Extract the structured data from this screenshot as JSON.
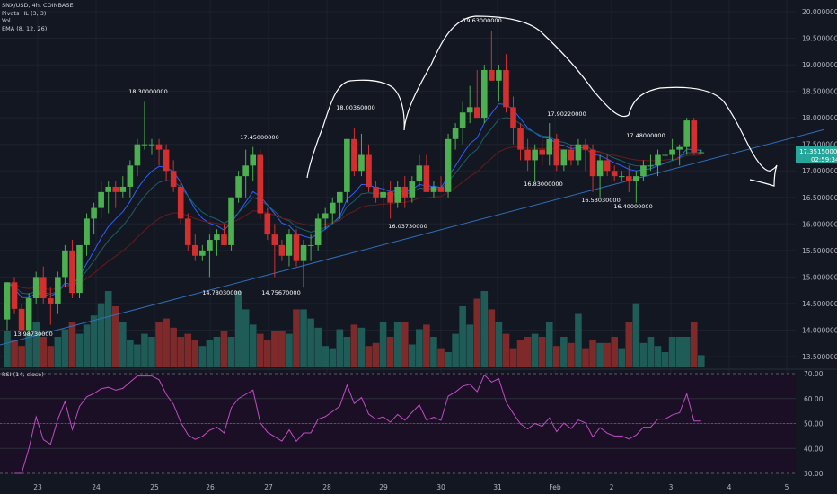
{
  "legend": {
    "symbol": "SNX/USD, 4h, COINBASE",
    "pivots": "Pivots HL (3, 3)",
    "vol": "Vol",
    "ema": "EMA (8, 12, 26)"
  },
  "rsi_label": "RSI (14, close)",
  "price_tag": {
    "value": "17.35150000",
    "countdown": "02:59:34"
  },
  "colors": {
    "background": "#131722",
    "up": "#26a69a",
    "up_body": "#4caf50",
    "down": "#d32f2f",
    "vol_up": "#1f5c57",
    "vol_down": "#7f2a2a",
    "trendline": "#2e6fb8",
    "ema_fast": "#2962ff",
    "ema_mid": "#1a5f6b",
    "ema_slow": "#6b1a1a",
    "rsi": "#c14cc5",
    "rsi_bg": "#1a0f24",
    "tag": "#26a69a"
  },
  "chart_data": [
    {
      "type": "candlestick",
      "title": "SNX/USD, 4h, COINBASE",
      "ylim": [
        13.2,
        20.1
      ],
      "y_ticks": [
        "20.00000000",
        "19.50000000",
        "19.00000000",
        "18.50000000",
        "18.00000000",
        "17.50000000",
        "17.00000000",
        "16.50000000",
        "16.00000000",
        "15.50000000",
        "15.00000000",
        "14.50000000",
        "14.00000000",
        "13.50000000"
      ],
      "x_ticks": [
        "23",
        "24",
        "25",
        "26",
        "27",
        "28",
        "29",
        "30",
        "31",
        "Feb",
        "2",
        "3",
        "4",
        "5"
      ],
      "candles": [
        [
          14.2,
          14.9,
          14.0,
          14.9
        ],
        [
          14.9,
          15.0,
          14.3,
          14.4
        ],
        [
          14.4,
          14.5,
          13.9,
          14.0
        ],
        [
          14.0,
          14.7,
          13.9,
          14.6
        ],
        [
          14.6,
          15.1,
          14.5,
          15.0
        ],
        [
          15.0,
          15.2,
          14.5,
          14.6
        ],
        [
          14.6,
          14.8,
          14.1,
          14.5
        ],
        [
          14.5,
          15.1,
          14.3,
          15.0
        ],
        [
          15.0,
          15.6,
          14.8,
          15.5
        ],
        [
          15.5,
          15.7,
          14.6,
          14.7
        ],
        [
          14.7,
          15.6,
          14.6,
          15.6
        ],
        [
          15.6,
          16.2,
          15.4,
          16.1
        ],
        [
          16.1,
          16.4,
          15.8,
          16.3
        ],
        [
          16.3,
          16.8,
          16.1,
          16.6
        ],
        [
          16.6,
          16.8,
          16.2,
          16.7
        ],
        [
          16.7,
          16.8,
          16.3,
          16.6
        ],
        [
          16.6,
          16.9,
          16.5,
          16.7
        ],
        [
          16.7,
          17.2,
          16.5,
          17.1
        ],
        [
          17.1,
          17.6,
          16.9,
          17.5
        ],
        [
          17.5,
          18.3,
          17.4,
          17.5
        ],
        [
          17.5,
          17.6,
          17.3,
          17.5
        ],
        [
          17.5,
          17.6,
          17.1,
          17.4
        ],
        [
          17.4,
          17.5,
          16.8,
          17.0
        ],
        [
          17.0,
          17.2,
          16.6,
          16.7
        ],
        [
          16.7,
          16.8,
          16.0,
          16.1
        ],
        [
          16.1,
          16.2,
          15.5,
          15.6
        ],
        [
          15.6,
          15.8,
          15.3,
          15.4
        ],
        [
          15.4,
          15.6,
          15.3,
          15.5
        ],
        [
          15.5,
          15.8,
          15.0,
          15.7
        ],
        [
          15.7,
          15.9,
          15.4,
          15.8
        ],
        [
          15.8,
          16.0,
          15.6,
          15.6
        ],
        [
          15.6,
          16.5,
          15.5,
          16.5
        ],
        [
          16.5,
          17.0,
          16.4,
          16.9
        ],
        [
          16.9,
          17.4,
          16.5,
          17.1
        ],
        [
          17.1,
          17.45,
          16.8,
          17.3
        ],
        [
          17.3,
          17.4,
          16.1,
          16.2
        ],
        [
          16.2,
          16.3,
          15.7,
          15.8
        ],
        [
          15.8,
          16.0,
          15.0,
          15.6
        ],
        [
          15.6,
          15.7,
          15.3,
          15.4
        ],
        [
          15.4,
          15.9,
          15.2,
          15.8
        ],
        [
          15.8,
          15.9,
          15.2,
          15.3
        ],
        [
          15.3,
          15.7,
          14.8,
          15.6
        ],
        [
          15.6,
          15.8,
          15.3,
          15.6
        ],
        [
          15.6,
          16.2,
          15.5,
          16.1
        ],
        [
          16.1,
          16.3,
          15.9,
          16.2
        ],
        [
          16.2,
          16.5,
          16.0,
          16.4
        ],
        [
          16.4,
          16.6,
          16.1,
          16.6
        ],
        [
          16.6,
          17.6,
          16.4,
          17.6
        ],
        [
          17.6,
          17.8,
          16.9,
          17.0
        ],
        [
          17.0,
          17.7,
          16.9,
          17.3
        ],
        [
          17.3,
          17.5,
          16.6,
          16.7
        ],
        [
          16.7,
          16.8,
          16.4,
          16.5
        ],
        [
          16.5,
          16.8,
          16.3,
          16.6
        ],
        [
          16.6,
          16.8,
          16.1,
          16.4
        ],
        [
          16.4,
          16.8,
          16.3,
          16.7
        ],
        [
          16.7,
          16.9,
          16.3,
          16.5
        ],
        [
          16.5,
          16.9,
          16.4,
          16.8
        ],
        [
          16.8,
          17.3,
          16.7,
          17.1
        ],
        [
          17.1,
          17.3,
          16.6,
          16.6
        ],
        [
          16.6,
          16.8,
          16.5,
          16.7
        ],
        [
          16.7,
          16.9,
          16.6,
          16.6
        ],
        [
          16.6,
          17.7,
          16.5,
          17.6
        ],
        [
          17.6,
          17.9,
          17.4,
          17.8
        ],
        [
          17.8,
          18.3,
          17.5,
          18.1
        ],
        [
          18.1,
          18.6,
          17.9,
          18.2
        ],
        [
          18.2,
          18.9,
          18.0,
          18.0
        ],
        [
          18.0,
          19.0,
          17.9,
          18.9
        ],
        [
          18.9,
          19.63,
          18.7,
          18.7
        ],
        [
          18.7,
          19.0,
          18.3,
          18.9
        ],
        [
          18.9,
          19.2,
          18.1,
          18.2
        ],
        [
          18.2,
          18.4,
          17.5,
          17.8
        ],
        [
          17.8,
          17.9,
          17.2,
          17.4
        ],
        [
          17.4,
          17.6,
          17.0,
          17.2
        ],
        [
          17.2,
          17.5,
          16.8,
          17.4
        ],
        [
          17.4,
          17.6,
          17.1,
          17.3
        ],
        [
          17.3,
          17.9,
          17.1,
          17.6
        ],
        [
          17.6,
          17.7,
          17.0,
          17.1
        ],
        [
          17.1,
          17.4,
          17.0,
          17.4
        ],
        [
          17.4,
          17.5,
          17.1,
          17.2
        ],
        [
          17.2,
          17.6,
          17.1,
          17.5
        ],
        [
          17.5,
          17.6,
          17.0,
          17.4
        ],
        [
          17.4,
          17.5,
          16.6,
          16.9
        ],
        [
          16.9,
          17.3,
          16.5,
          17.2
        ],
        [
          17.2,
          17.3,
          16.9,
          17.0
        ],
        [
          17.0,
          17.1,
          16.8,
          16.9
        ],
        [
          16.9,
          17.0,
          16.8,
          16.9
        ],
        [
          16.9,
          17.1,
          16.6,
          16.8
        ],
        [
          16.8,
          17.0,
          16.4,
          16.9
        ],
        [
          16.9,
          17.2,
          16.8,
          17.1
        ],
        [
          17.1,
          17.3,
          17.0,
          17.1
        ],
        [
          17.1,
          17.4,
          16.9,
          17.3
        ],
        [
          17.3,
          17.4,
          17.0,
          17.3
        ],
        [
          17.3,
          17.6,
          17.2,
          17.4
        ],
        [
          17.4,
          17.5,
          17.1,
          17.45
        ],
        [
          17.45,
          18.0,
          17.3,
          17.95
        ],
        [
          17.95,
          18.0,
          17.3,
          17.35
        ],
        [
          17.35,
          17.4,
          17.33,
          17.35
        ]
      ],
      "volumes": [
        24,
        18,
        14,
        22,
        30,
        20,
        14,
        20,
        25,
        30,
        22,
        28,
        34,
        42,
        50,
        40,
        30,
        18,
        15,
        22,
        20,
        30,
        32,
        26,
        20,
        22,
        18,
        14,
        18,
        20,
        24,
        20,
        50,
        38,
        28,
        22,
        18,
        24,
        24,
        22,
        38,
        38,
        32,
        26,
        14,
        12,
        25,
        20,
        28,
        26,
        14,
        16,
        30,
        20,
        30,
        30,
        15,
        25,
        28,
        20,
        12,
        10,
        22,
        40,
        28,
        45,
        50,
        38,
        30,
        22,
        12,
        18,
        20,
        22,
        20,
        30,
        14,
        20,
        16,
        35,
        12,
        18,
        16,
        16,
        20,
        12,
        30,
        42,
        16,
        20,
        14,
        10,
        20,
        20,
        20,
        30,
        8
      ],
      "pivot_labels": [
        "13.98730000",
        "18.30000000",
        "14.78030000",
        "17.45000000",
        "14.75670000",
        "18.00360000",
        "16.03730000",
        "19.63000000",
        "16.83000000",
        "17.90220000",
        "16.53030000",
        "16.40000000",
        "17.48000000"
      ],
      "rsi": {
        "label": "RSI (14, close)",
        "ylim": [
          30,
          70
        ],
        "y_ticks": [
          "70.00",
          "60.00",
          "50.00",
          "40.00",
          "30.00"
        ]
      }
    }
  ]
}
